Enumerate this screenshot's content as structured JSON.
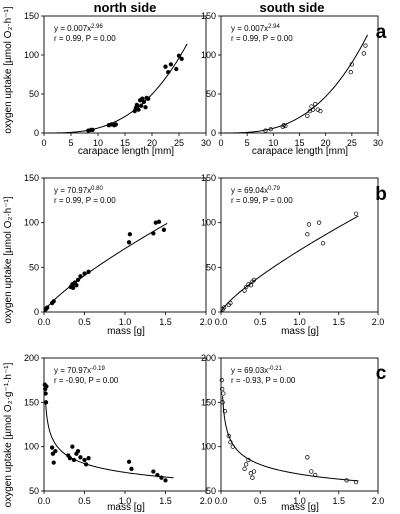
{
  "figure": {
    "col_titles": [
      "north side",
      "south side"
    ],
    "ylabel_uptake": "oxygen uptake [µmol O₂·h⁻¹]",
    "ylabel_mass_specific": "oxygen uptake [µmol O₂·g⁻¹·h⁻¹]",
    "panel_letters": [
      "a",
      "b",
      "c"
    ],
    "xlabel_length": "carapace length [mm]",
    "xlabel_mass": "mass [g]"
  },
  "chart_data": [
    {
      "type": "scatter",
      "id": "a-north",
      "side": "north side",
      "panel": "a",
      "fill": "#000000",
      "equation": {
        "base": "y = 0.007x",
        "exp": "2.96"
      },
      "stats": "r = 0.99, P = 0.00",
      "xlabel": "carapace length [mm]",
      "xlim": [
        0,
        30
      ],
      "ylim": [
        0,
        150
      ],
      "xticks": [
        "0",
        "5",
        "10",
        "15",
        "20",
        "25",
        "30"
      ],
      "yticks": [
        "0",
        "50",
        "100",
        "150"
      ],
      "fit": {
        "a": 0.007,
        "b": 2.96,
        "xmin": 0.5,
        "xmax": 26.5
      },
      "x": [
        8.2,
        8.7,
        9.0,
        12.0,
        12.5,
        13.0,
        13.3,
        16.8,
        17.0,
        17.2,
        17.5,
        17.8,
        18.0,
        18.2,
        18.5,
        18.8,
        19.0,
        19.3,
        22.5,
        23.0,
        23.5,
        24.5,
        25.0,
        25.5
      ],
      "y": [
        3,
        4,
        4,
        10,
        11,
        10,
        11,
        28,
        32,
        36,
        30,
        42,
        35,
        44,
        40,
        33,
        45,
        44,
        85,
        78,
        88,
        82,
        99,
        95
      ]
    },
    {
      "type": "scatter",
      "id": "a-south",
      "side": "south side",
      "panel": "a",
      "fill": "none",
      "equation": {
        "base": "y = 0.007x",
        "exp": "2.94"
      },
      "stats": "r = 0.99, P = 0.00",
      "xlabel": "carapace length [mm]",
      "xlim": [
        0,
        30
      ],
      "ylim": [
        0,
        150
      ],
      "xticks": [
        "0",
        "5",
        "10",
        "15",
        "20",
        "25",
        "30"
      ],
      "yticks": [
        "0",
        "50",
        "100",
        "150"
      ],
      "fit": {
        "a": 0.007,
        "b": 2.94,
        "xmin": 0.5,
        "xmax": 28
      },
      "x": [
        8.5,
        9.5,
        11.8,
        12.0,
        12.3,
        16.5,
        17.0,
        17.3,
        17.6,
        18.0,
        18.5,
        19.0,
        24.8,
        25.0,
        27.3,
        27.6
      ],
      "y": [
        3,
        5,
        8,
        10,
        9,
        22,
        28,
        34,
        30,
        37,
        30,
        28,
        78,
        88,
        102,
        112
      ]
    },
    {
      "type": "scatter",
      "id": "b-north",
      "side": "north side",
      "panel": "b",
      "fill": "#000000",
      "equation": {
        "base": "y = 70.97x",
        "exp": "0.80"
      },
      "stats": "r = 0.99, P = 0.00",
      "xlabel": "mass [g]",
      "xlim": [
        0,
        2.0
      ],
      "ylim": [
        0,
        150
      ],
      "xticks": [
        "0.0",
        "0.5",
        "1.0",
        "1.5",
        "2.0"
      ],
      "yticks": [
        "0",
        "50",
        "100",
        "150"
      ],
      "fit": {
        "a": 70.97,
        "b": 0.8,
        "xmin": 0.0,
        "xmax": 1.52
      },
      "x": [
        0.02,
        0.03,
        0.04,
        0.1,
        0.12,
        0.33,
        0.35,
        0.36,
        0.38,
        0.4,
        0.42,
        0.45,
        0.5,
        0.55,
        1.05,
        1.06,
        1.35,
        1.38,
        1.42,
        1.48
      ],
      "y": [
        3,
        4,
        5,
        10,
        12,
        28,
        31,
        27,
        33,
        30,
        36,
        40,
        43,
        45,
        78,
        87,
        88,
        100,
        101,
        92
      ]
    },
    {
      "type": "scatter",
      "id": "b-south",
      "side": "south side",
      "panel": "b",
      "fill": "none",
      "equation": {
        "base": "y = 69.04x",
        "exp": "0.79"
      },
      "stats": "r = 0.99, P = 0.00",
      "xlabel": "mass [g]",
      "xlim": [
        0,
        2.0
      ],
      "ylim": [
        0,
        150
      ],
      "xticks": [
        "0.0",
        "0.5",
        "1.0",
        "1.5",
        "2.0"
      ],
      "yticks": [
        "0",
        "50",
        "100",
        "150"
      ],
      "fit": {
        "a": 69.04,
        "b": 0.79,
        "xmin": 0.0,
        "xmax": 1.75
      },
      "x": [
        0.02,
        0.04,
        0.1,
        0.12,
        0.3,
        0.32,
        0.35,
        0.38,
        0.4,
        0.42,
        1.1,
        1.12,
        1.25,
        1.3,
        1.72
      ],
      "y": [
        3,
        5,
        8,
        10,
        24,
        28,
        31,
        30,
        34,
        36,
        87,
        98,
        100,
        77,
        110
      ]
    },
    {
      "type": "scatter",
      "id": "c-north",
      "side": "north side",
      "panel": "c",
      "fill": "#000000",
      "equation": {
        "base": "y = 70.97x",
        "exp": "-0.19"
      },
      "stats": "r = -0.90, P = 0.00",
      "xlabel": "mass [g]",
      "xlim": [
        0,
        2.0
      ],
      "ylim": [
        50,
        200
      ],
      "xticks": [
        "0.0",
        "0.5",
        "1.0",
        "1.5",
        "2.0"
      ],
      "yticks": [
        "50",
        "100",
        "150",
        "200"
      ],
      "fit": {
        "a": 70.97,
        "b": -0.19,
        "xmin": 0.02,
        "xmax": 1.6
      },
      "x": [
        0.01,
        0.015,
        0.02,
        0.025,
        0.03,
        0.1,
        0.11,
        0.12,
        0.14,
        0.3,
        0.32,
        0.35,
        0.37,
        0.4,
        0.42,
        0.45,
        0.5,
        0.52,
        0.55,
        1.05,
        1.08,
        1.35,
        1.4,
        1.45,
        1.5
      ],
      "y": [
        170,
        165,
        160,
        150,
        168,
        99,
        92,
        82,
        95,
        90,
        87,
        100,
        85,
        92,
        95,
        88,
        85,
        80,
        87,
        83,
        75,
        72,
        68,
        65,
        62
      ]
    },
    {
      "type": "scatter",
      "id": "c-south",
      "side": "south side",
      "panel": "c",
      "fill": "none",
      "equation": {
        "base": "y = 69.03x",
        "exp": "-0.21"
      },
      "stats": "r = -0.93, P = 0.00",
      "xlabel": "mass [g]",
      "xlim": [
        0,
        2.0
      ],
      "ylim": [
        50,
        200
      ],
      "xticks": [
        "0.0",
        "0.5",
        "1.0",
        "1.5",
        "2.0"
      ],
      "yticks": [
        "50",
        "100",
        "150",
        "200"
      ],
      "fit": {
        "a": 69.03,
        "b": -0.21,
        "xmin": 0.02,
        "xmax": 1.75
      },
      "x": [
        0.01,
        0.015,
        0.02,
        0.03,
        0.05,
        0.1,
        0.12,
        0.15,
        0.3,
        0.32,
        0.35,
        0.38,
        0.4,
        0.42,
        1.1,
        1.15,
        1.2,
        1.6,
        1.72
      ],
      "y": [
        175,
        165,
        150,
        160,
        140,
        112,
        105,
        100,
        75,
        80,
        85,
        70,
        65,
        72,
        88,
        72,
        68,
        62,
        60
      ]
    }
  ]
}
